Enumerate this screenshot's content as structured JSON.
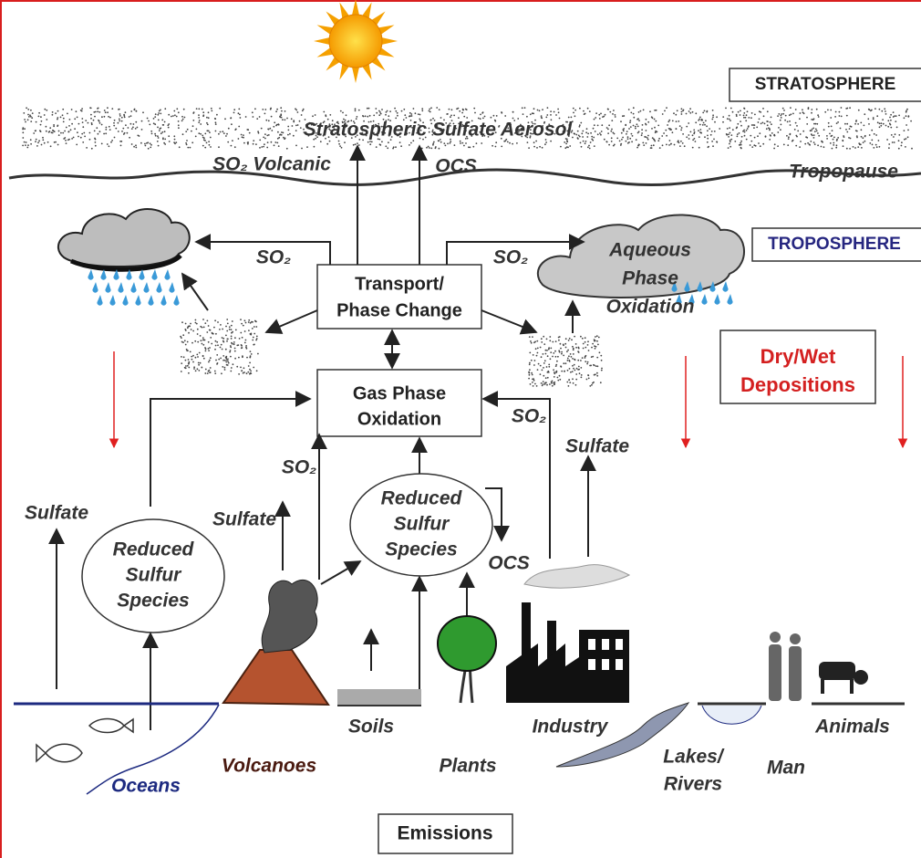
{
  "layers": {
    "stratosphere": "STRATOSPHERE",
    "aerosol": "Stratospheric Sulfate Aerosol",
    "tropopause": "Tropopause",
    "troposphere": "TROPOSPHERE"
  },
  "processes": {
    "transport": [
      "Transport/",
      "Phase Change"
    ],
    "gas_phase": [
      "Gas Phase",
      "Oxidation"
    ],
    "aqueous": [
      "Aqueous",
      "Phase",
      "Oxidation"
    ],
    "deposition": [
      "Dry/Wet",
      "Depositions"
    ],
    "reduced_center": [
      "Reduced",
      "Sulfur",
      "Species"
    ],
    "reduced_left": [
      "Reduced",
      "Sulfur",
      "Species"
    ]
  },
  "fluxes": {
    "so2_volcanic": "SO₂ Volcanic",
    "ocs_up": "OCS",
    "so2_left": "SO₂",
    "so2_right": "SO₂",
    "so2_industry": "SO₂",
    "sulfate_industry": "Sulfate",
    "so2_volcano": "SO₂",
    "ocs_center": "OCS",
    "sulfate_left": "Sulfate",
    "sulfate_volcano": "Sulfate"
  },
  "sources": {
    "soils": "Soils",
    "industry": "Industry",
    "animals": "Animals",
    "volcanoes": "Volcanoes",
    "plants": "Plants",
    "lakes_rivers": [
      "Lakes/",
      "Rivers"
    ],
    "man": "Man",
    "oceans": "Oceans"
  },
  "footer": "Emissions"
}
